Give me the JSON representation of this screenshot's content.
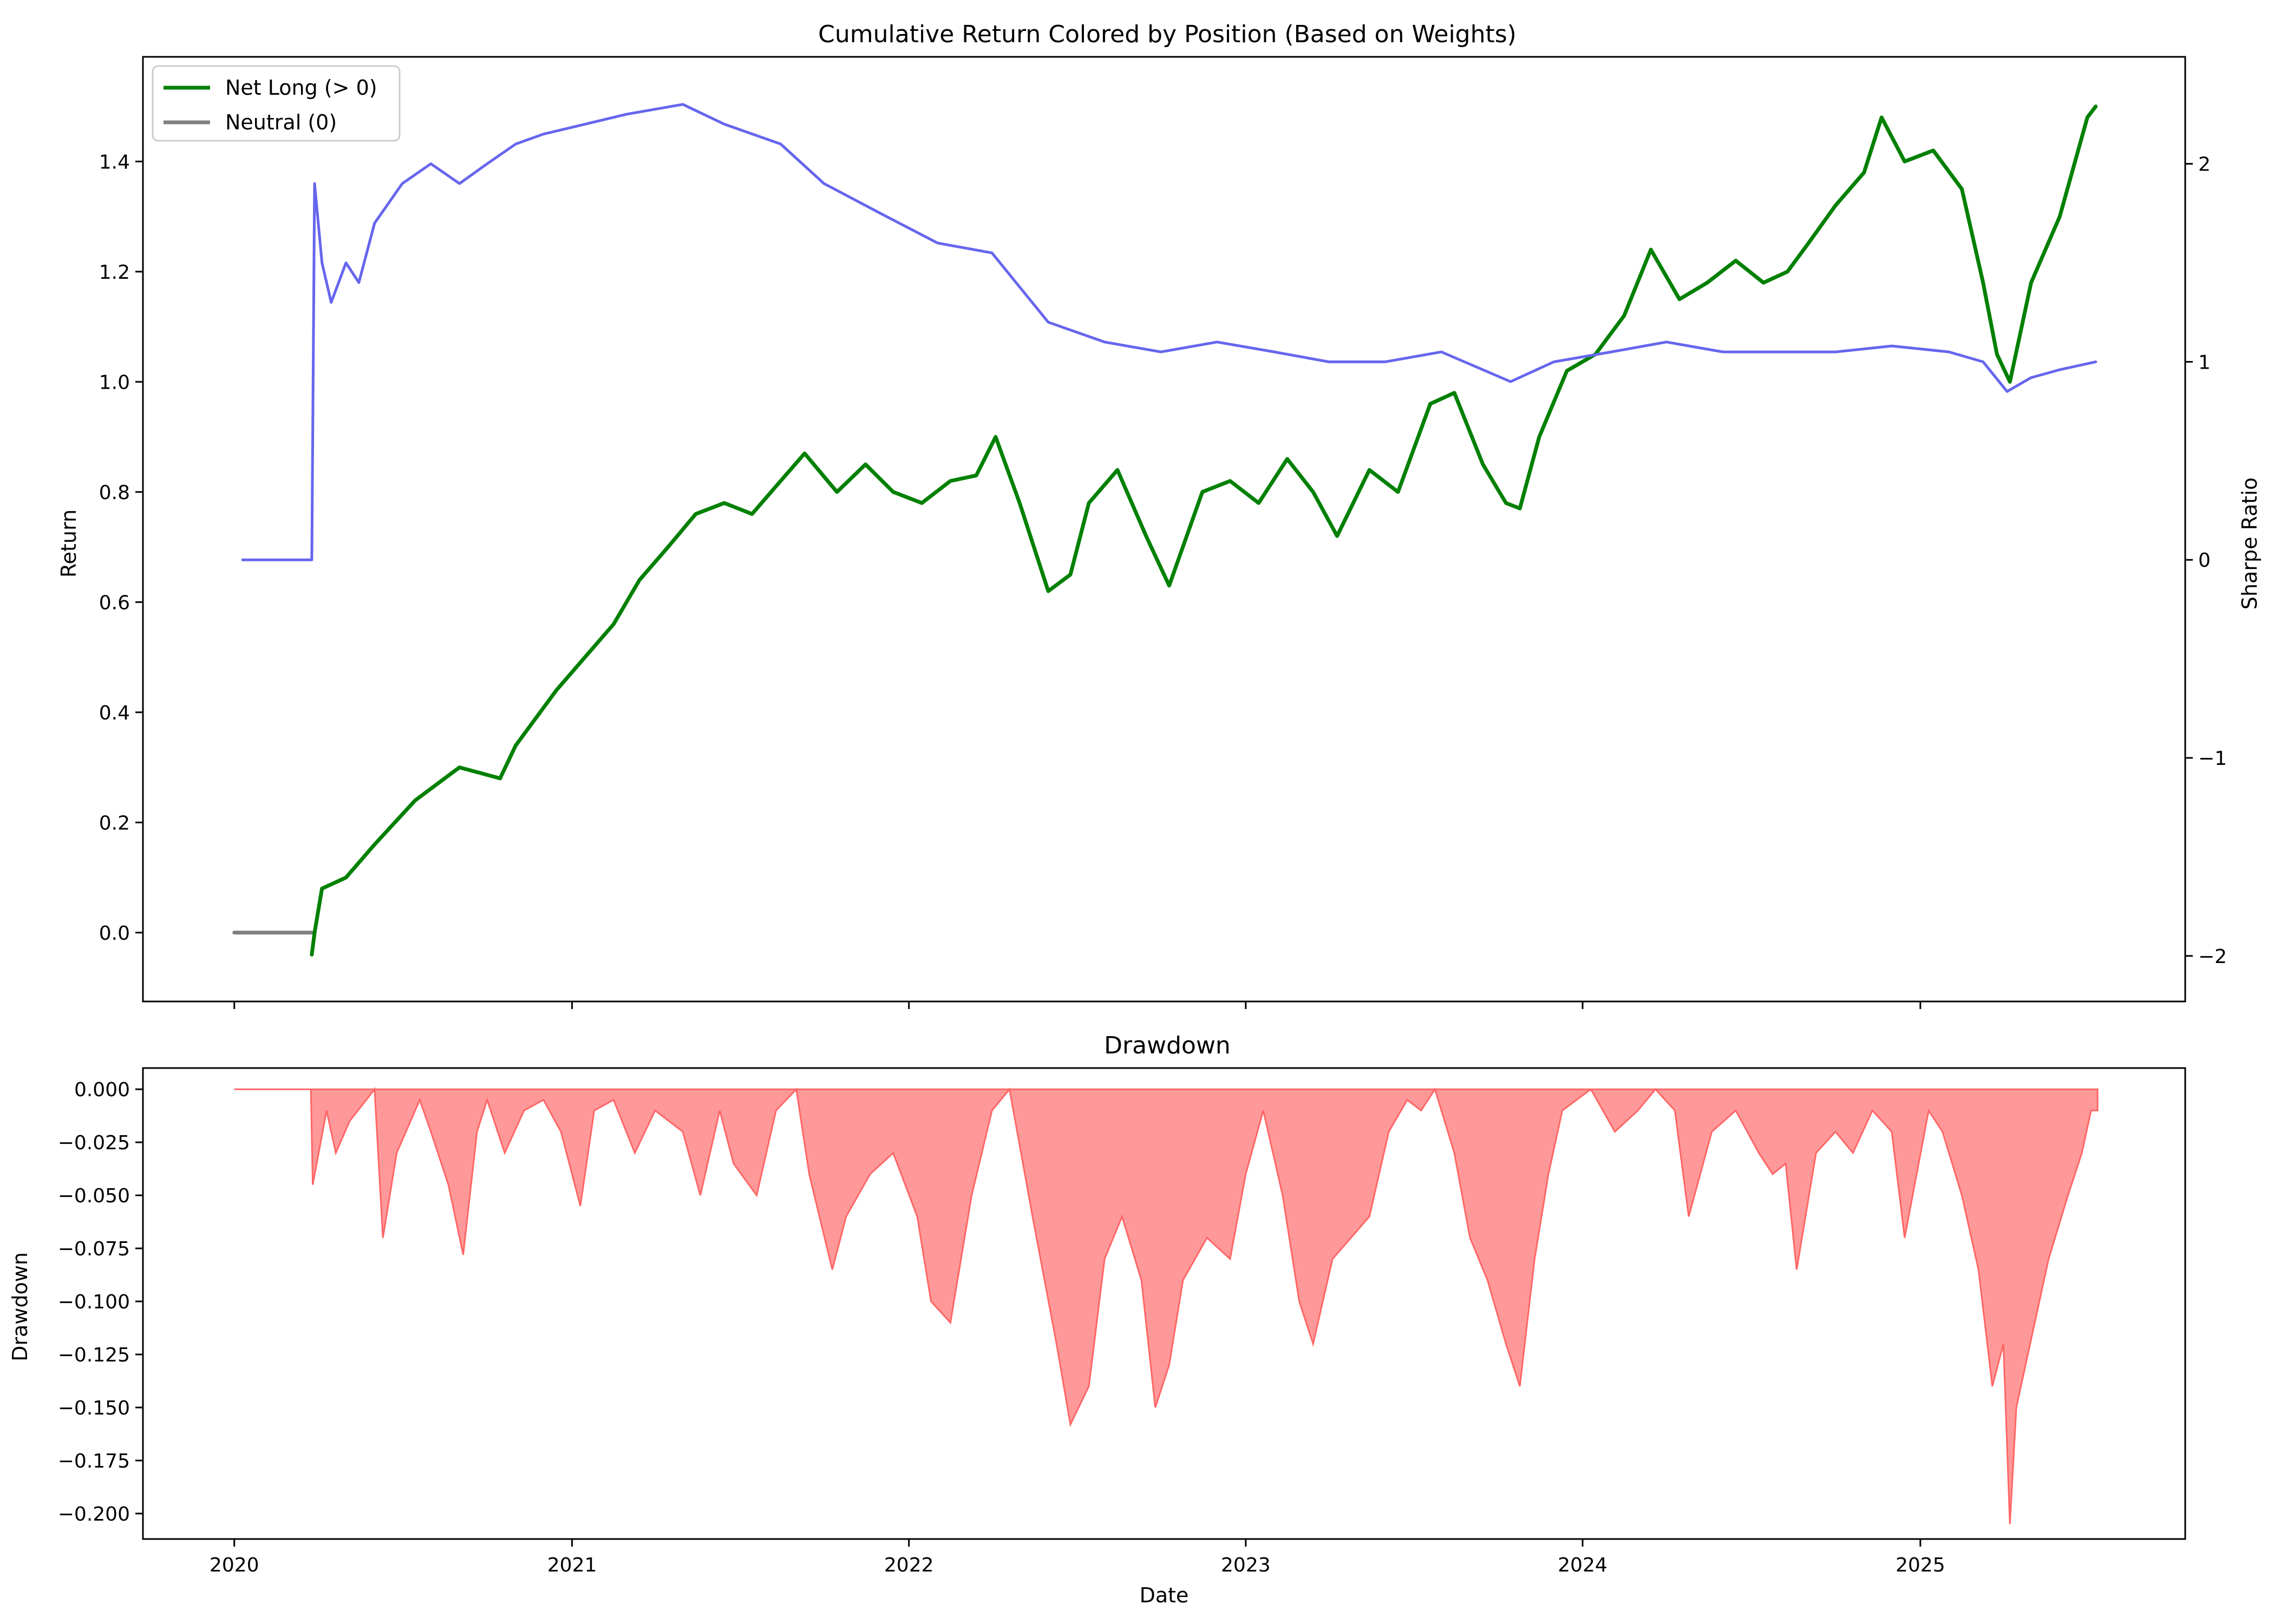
{
  "chart_data": [
    {
      "type": "line",
      "title": "Cumulative Return Colored by Position (Based on Weights)",
      "xlabel": "",
      "ylabel": "Return",
      "y2label": "Sharpe Ratio",
      "xlim": [
        "2019-09-24",
        "2025-10-15"
      ],
      "ylim": [
        -0.125,
        1.59
      ],
      "y2lim": [
        -2.23,
        2.54
      ],
      "yticks": [
        "0.0",
        "0.2",
        "0.4",
        "0.6",
        "0.8",
        "1.0",
        "1.2",
        "1.4"
      ],
      "y2ticks": [
        "−2",
        "−1",
        "0",
        "1",
        "2"
      ],
      "legend": {
        "position": "top-left",
        "entries": [
          {
            "label": "Net Long (> 0)",
            "color": "#008000"
          },
          {
            "label": "Neutral (0)",
            "color": "#808080"
          }
        ]
      },
      "series": [
        {
          "name": "Neutral (0)",
          "axis": "left",
          "color": "#808080",
          "x": [
            "2020-01-01",
            "2020-03-25"
          ],
          "y": [
            0.0,
            0.0
          ]
        },
        {
          "name": "Net Long (> 0)",
          "axis": "left",
          "color": "#008000",
          "x": [
            "2020-03-25",
            "2020-03-28",
            "2020-04-05",
            "2020-05-01",
            "2020-06-01",
            "2020-07-15",
            "2020-09-01",
            "2020-10-15",
            "2020-11-01",
            "2020-12-15",
            "2021-01-15",
            "2021-02-15",
            "2021-03-15",
            "2021-04-15",
            "2021-05-15",
            "2021-06-15",
            "2021-07-15",
            "2021-08-15",
            "2021-09-10",
            "2021-10-15",
            "2021-11-15",
            "2021-12-15",
            "2022-01-15",
            "2022-02-15",
            "2022-03-15",
            "2022-04-05",
            "2022-05-01",
            "2022-06-01",
            "2022-06-25",
            "2022-07-15",
            "2022-08-15",
            "2022-09-15",
            "2022-10-10",
            "2022-11-15",
            "2022-12-15",
            "2023-01-15",
            "2023-02-15",
            "2023-03-15",
            "2023-04-10",
            "2023-05-15",
            "2023-06-15",
            "2023-07-20",
            "2023-08-15",
            "2023-09-15",
            "2023-10-10",
            "2023-10-25",
            "2023-11-15",
            "2023-12-15",
            "2024-01-15",
            "2024-02-15",
            "2024-03-15",
            "2024-04-15",
            "2024-05-15",
            "2024-06-15",
            "2024-07-15",
            "2024-08-10",
            "2024-09-01",
            "2024-10-01",
            "2024-11-01",
            "2024-11-20",
            "2024-12-15",
            "2025-01-15",
            "2025-02-15",
            "2025-03-10",
            "2025-03-25",
            "2025-04-08",
            "2025-05-01",
            "2025-06-01",
            "2025-07-01",
            "2025-07-10"
          ],
          "y": [
            -0.04,
            0.0,
            0.08,
            0.1,
            0.16,
            0.24,
            0.3,
            0.28,
            0.34,
            0.44,
            0.5,
            0.56,
            0.64,
            0.7,
            0.76,
            0.78,
            0.76,
            0.82,
            0.87,
            0.8,
            0.85,
            0.8,
            0.78,
            0.82,
            0.83,
            0.9,
            0.78,
            0.62,
            0.65,
            0.78,
            0.84,
            0.72,
            0.63,
            0.8,
            0.82,
            0.78,
            0.86,
            0.8,
            0.72,
            0.84,
            0.8,
            0.96,
            0.98,
            0.85,
            0.78,
            0.77,
            0.9,
            1.02,
            1.05,
            1.12,
            1.24,
            1.15,
            1.18,
            1.22,
            1.18,
            1.2,
            1.25,
            1.32,
            1.38,
            1.48,
            1.4,
            1.42,
            1.35,
            1.18,
            1.05,
            1.0,
            1.18,
            1.3,
            1.48,
            1.5
          ]
        },
        {
          "name": "",
          "axis": "right",
          "color": "#6666ee",
          "x": [
            "2020-01-10",
            "2020-03-25",
            "2020-03-28",
            "2020-04-05",
            "2020-04-15",
            "2020-05-01",
            "2020-05-15",
            "2020-06-01",
            "2020-07-01",
            "2020-08-01",
            "2020-09-01",
            "2020-10-01",
            "2020-11-01",
            "2020-12-01",
            "2021-01-15",
            "2021-03-01",
            "2021-05-01",
            "2021-06-15",
            "2021-08-15",
            "2021-10-01",
            "2021-12-01",
            "2022-02-01",
            "2022-04-01",
            "2022-06-01",
            "2022-08-01",
            "2022-10-01",
            "2022-12-01",
            "2023-02-01",
            "2023-04-01",
            "2023-06-01",
            "2023-08-01",
            "2023-10-15",
            "2023-12-01",
            "2024-02-01",
            "2024-04-01",
            "2024-06-01",
            "2024-08-01",
            "2024-10-01",
            "2024-12-01",
            "2025-02-01",
            "2025-03-10",
            "2025-04-05",
            "2025-05-01",
            "2025-06-01",
            "2025-07-10"
          ],
          "y": [
            0.0,
            0.0,
            1.9,
            1.5,
            1.3,
            1.5,
            1.4,
            1.7,
            1.9,
            2.0,
            1.9,
            2.0,
            2.1,
            2.15,
            2.2,
            2.25,
            2.3,
            2.2,
            2.1,
            1.9,
            1.75,
            1.6,
            1.55,
            1.2,
            1.1,
            1.05,
            1.1,
            1.05,
            1.0,
            1.0,
            1.05,
            0.9,
            1.0,
            1.05,
            1.1,
            1.05,
            1.05,
            1.05,
            1.08,
            1.05,
            1.0,
            0.85,
            0.92,
            0.96,
            1.0
          ]
        }
      ]
    },
    {
      "type": "area",
      "title": "Drawdown",
      "xlabel": "Date",
      "ylabel": "Drawdown",
      "xlim": [
        "2019-09-24",
        "2025-10-15"
      ],
      "ylim": [
        -0.212,
        0.01
      ],
      "yticks": [
        "0.000",
        "−0.025",
        "−0.050",
        "−0.075",
        "−0.100",
        "−0.125",
        "−0.150",
        "−0.175",
        "−0.200"
      ],
      "xticks": [
        "2020",
        "2021",
        "2022",
        "2023",
        "2024",
        "2025"
      ],
      "color": "#ff8080",
      "series": [
        {
          "name": "",
          "x": [
            "2020-01-01",
            "2020-03-24",
            "2020-03-26",
            "2020-04-10",
            "2020-04-20",
            "2020-05-05",
            "2020-06-01",
            "2020-06-10",
            "2020-06-25",
            "2020-07-20",
            "2020-08-01",
            "2020-08-20",
            "2020-09-05",
            "2020-09-20",
            "2020-10-01",
            "2020-10-20",
            "2020-11-10",
            "2020-12-01",
            "2020-12-20",
            "2021-01-10",
            "2021-01-25",
            "2021-02-15",
            "2021-03-10",
            "2021-04-01",
            "2021-05-01",
            "2021-05-20",
            "2021-06-10",
            "2021-06-25",
            "2021-07-20",
            "2021-08-10",
            "2021-09-01",
            "2021-09-15",
            "2021-10-10",
            "2021-10-25",
            "2021-11-20",
            "2021-12-15",
            "2022-01-10",
            "2022-01-25",
            "2022-02-15",
            "2022-03-10",
            "2022-04-01",
            "2022-04-20",
            "2022-05-15",
            "2022-06-10",
            "2022-06-25",
            "2022-07-15",
            "2022-08-01",
            "2022-08-20",
            "2022-09-10",
            "2022-09-25",
            "2022-10-10",
            "2022-10-25",
            "2022-11-20",
            "2022-12-15",
            "2023-01-01",
            "2023-01-20",
            "2023-02-10",
            "2023-02-28",
            "2023-03-15",
            "2023-04-05",
            "2023-04-25",
            "2023-05-15",
            "2023-06-05",
            "2023-06-25",
            "2023-07-10",
            "2023-07-25",
            "2023-08-15",
            "2023-09-01",
            "2023-09-20",
            "2023-10-10",
            "2023-10-25",
            "2023-11-10",
            "2023-11-25",
            "2023-12-10",
            "2024-01-10",
            "2024-02-05",
            "2024-03-01",
            "2024-03-20",
            "2024-04-10",
            "2024-04-25",
            "2024-05-20",
            "2024-06-15",
            "2024-07-10",
            "2024-07-25",
            "2024-08-08",
            "2024-08-20",
            "2024-09-10",
            "2024-10-01",
            "2024-10-20",
            "2024-11-10",
            "2024-12-01",
            "2024-12-15",
            "2025-01-10",
            "2025-01-25",
            "2025-02-15",
            "2025-03-05",
            "2025-03-20",
            "2025-04-01",
            "2025-04-08",
            "2025-04-15",
            "2025-04-30",
            "2025-05-20",
            "2025-06-10",
            "2025-06-25",
            "2025-07-05",
            "2025-07-12"
          ],
          "y": [
            0.0,
            0.0,
            -0.045,
            -0.01,
            -0.03,
            -0.015,
            0.0,
            -0.07,
            -0.03,
            -0.005,
            -0.02,
            -0.045,
            -0.078,
            -0.02,
            -0.005,
            -0.03,
            -0.01,
            -0.005,
            -0.02,
            -0.055,
            -0.01,
            -0.005,
            -0.03,
            -0.01,
            -0.02,
            -0.05,
            -0.01,
            -0.035,
            -0.05,
            -0.01,
            0.0,
            -0.04,
            -0.085,
            -0.06,
            -0.04,
            -0.03,
            -0.06,
            -0.1,
            -0.11,
            -0.05,
            -0.01,
            0.0,
            -0.06,
            -0.12,
            -0.158,
            -0.14,
            -0.08,
            -0.06,
            -0.09,
            -0.15,
            -0.13,
            -0.09,
            -0.07,
            -0.08,
            -0.04,
            -0.01,
            -0.05,
            -0.1,
            -0.12,
            -0.08,
            -0.07,
            -0.06,
            -0.02,
            -0.005,
            -0.01,
            -0.0,
            -0.03,
            -0.07,
            -0.09,
            -0.12,
            -0.14,
            -0.08,
            -0.04,
            -0.01,
            -0.0,
            -0.02,
            -0.01,
            -0.0,
            -0.01,
            -0.06,
            -0.02,
            -0.01,
            -0.03,
            -0.04,
            -0.035,
            -0.085,
            -0.03,
            -0.02,
            -0.03,
            -0.01,
            -0.02,
            -0.07,
            -0.01,
            -0.02,
            -0.05,
            -0.085,
            -0.14,
            -0.12,
            -0.205,
            -0.15,
            -0.12,
            -0.08,
            -0.05,
            -0.03,
            -0.01,
            -0.01
          ]
        }
      ]
    }
  ]
}
